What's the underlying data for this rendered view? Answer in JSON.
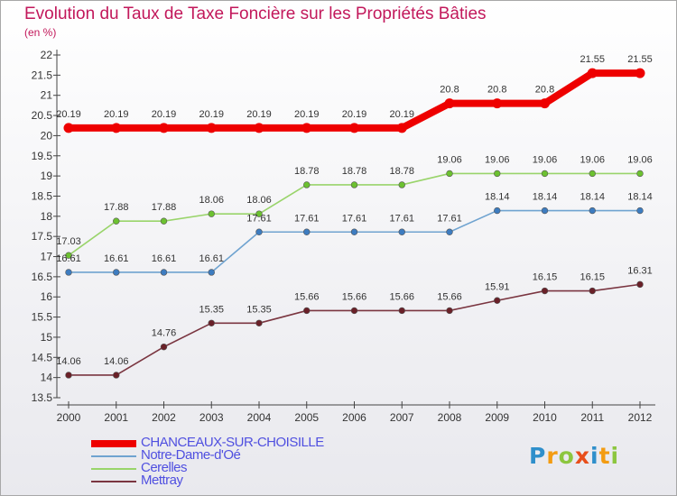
{
  "title": "Evolution du Taux de Taxe Foncière sur les Propriétés Bâties",
  "unit": "(en %)",
  "brand": {
    "text": "Proxiti",
    "letter_colors": [
      "#2f8fcb",
      "#f39c12",
      "#8cc63f",
      "#e84e1b",
      "#2f8fcb",
      "#f39c12",
      "#8cc63f"
    ]
  },
  "chart_data": {
    "type": "line",
    "x": [
      "2000",
      "2001",
      "2002",
      "2003",
      "2004",
      "2005",
      "2006",
      "2007",
      "2008",
      "2009",
      "2010",
      "2011",
      "2012"
    ],
    "ylim": [
      13.5,
      22
    ],
    "yticks": [
      "13.5",
      "14",
      "14.5",
      "15",
      "15.5",
      "16",
      "16.5",
      "17",
      "17.5",
      "18",
      "18.5",
      "19",
      "19.5",
      "20",
      "20.5",
      "21",
      "21.5",
      "22"
    ],
    "grid": false,
    "legend_position": "bottom-left",
    "series": [
      {
        "name": "CHANCEAUX-SUR-CHOISILLE",
        "color": "#ee0000",
        "marker": "#ee0000",
        "width": 8,
        "values": [
          20.19,
          20.19,
          20.19,
          20.19,
          20.19,
          20.19,
          20.19,
          20.19,
          20.8,
          20.8,
          20.8,
          21.55,
          21.55
        ],
        "labels": [
          "20.19",
          "20.19",
          "20.19",
          "20.19",
          "20.19",
          "20.19",
          "20.19",
          "20.19",
          "20.8",
          "20.8",
          "20.8",
          "21.55",
          "21.55"
        ]
      },
      {
        "name": "Notre-Dame-d'Oé",
        "color": "#6fa3d0",
        "marker": "#3d7cc0",
        "width": 1.6,
        "values": [
          16.61,
          16.61,
          16.61,
          16.61,
          17.61,
          17.61,
          17.61,
          17.61,
          17.61,
          18.14,
          18.14,
          18.14,
          18.14
        ],
        "labels": [
          "16.61",
          "16.61",
          "16.61",
          "16.61",
          "17.61",
          "17.61",
          "17.61",
          "17.61",
          "17.61",
          "18.14",
          "18.14",
          "18.14",
          "18.14"
        ]
      },
      {
        "name": "Cerelles",
        "color": "#99d46a",
        "marker": "#6cc130",
        "width": 1.6,
        "values": [
          17.03,
          17.88,
          17.88,
          18.06,
          18.06,
          18.78,
          18.78,
          18.78,
          19.06,
          19.06,
          19.06,
          19.06,
          19.06
        ],
        "labels": [
          "17.03",
          "17.88",
          "17.88",
          "18.06",
          "18.06",
          "18.78",
          "18.78",
          "18.78",
          "19.06",
          "19.06",
          "19.06",
          "19.06",
          "19.06"
        ]
      },
      {
        "name": "Mettray",
        "color": "#7a3540",
        "marker": "#6a2028",
        "width": 1.6,
        "values": [
          14.06,
          14.06,
          14.76,
          15.35,
          15.35,
          15.66,
          15.66,
          15.66,
          15.66,
          15.91,
          16.15,
          16.15,
          16.31
        ],
        "labels": [
          "14.06",
          "14.06",
          "14.76",
          "15.35",
          "15.35",
          "15.66",
          "15.66",
          "15.66",
          "15.66",
          "15.91",
          "16.15",
          "16.15",
          "16.31"
        ]
      }
    ]
  }
}
